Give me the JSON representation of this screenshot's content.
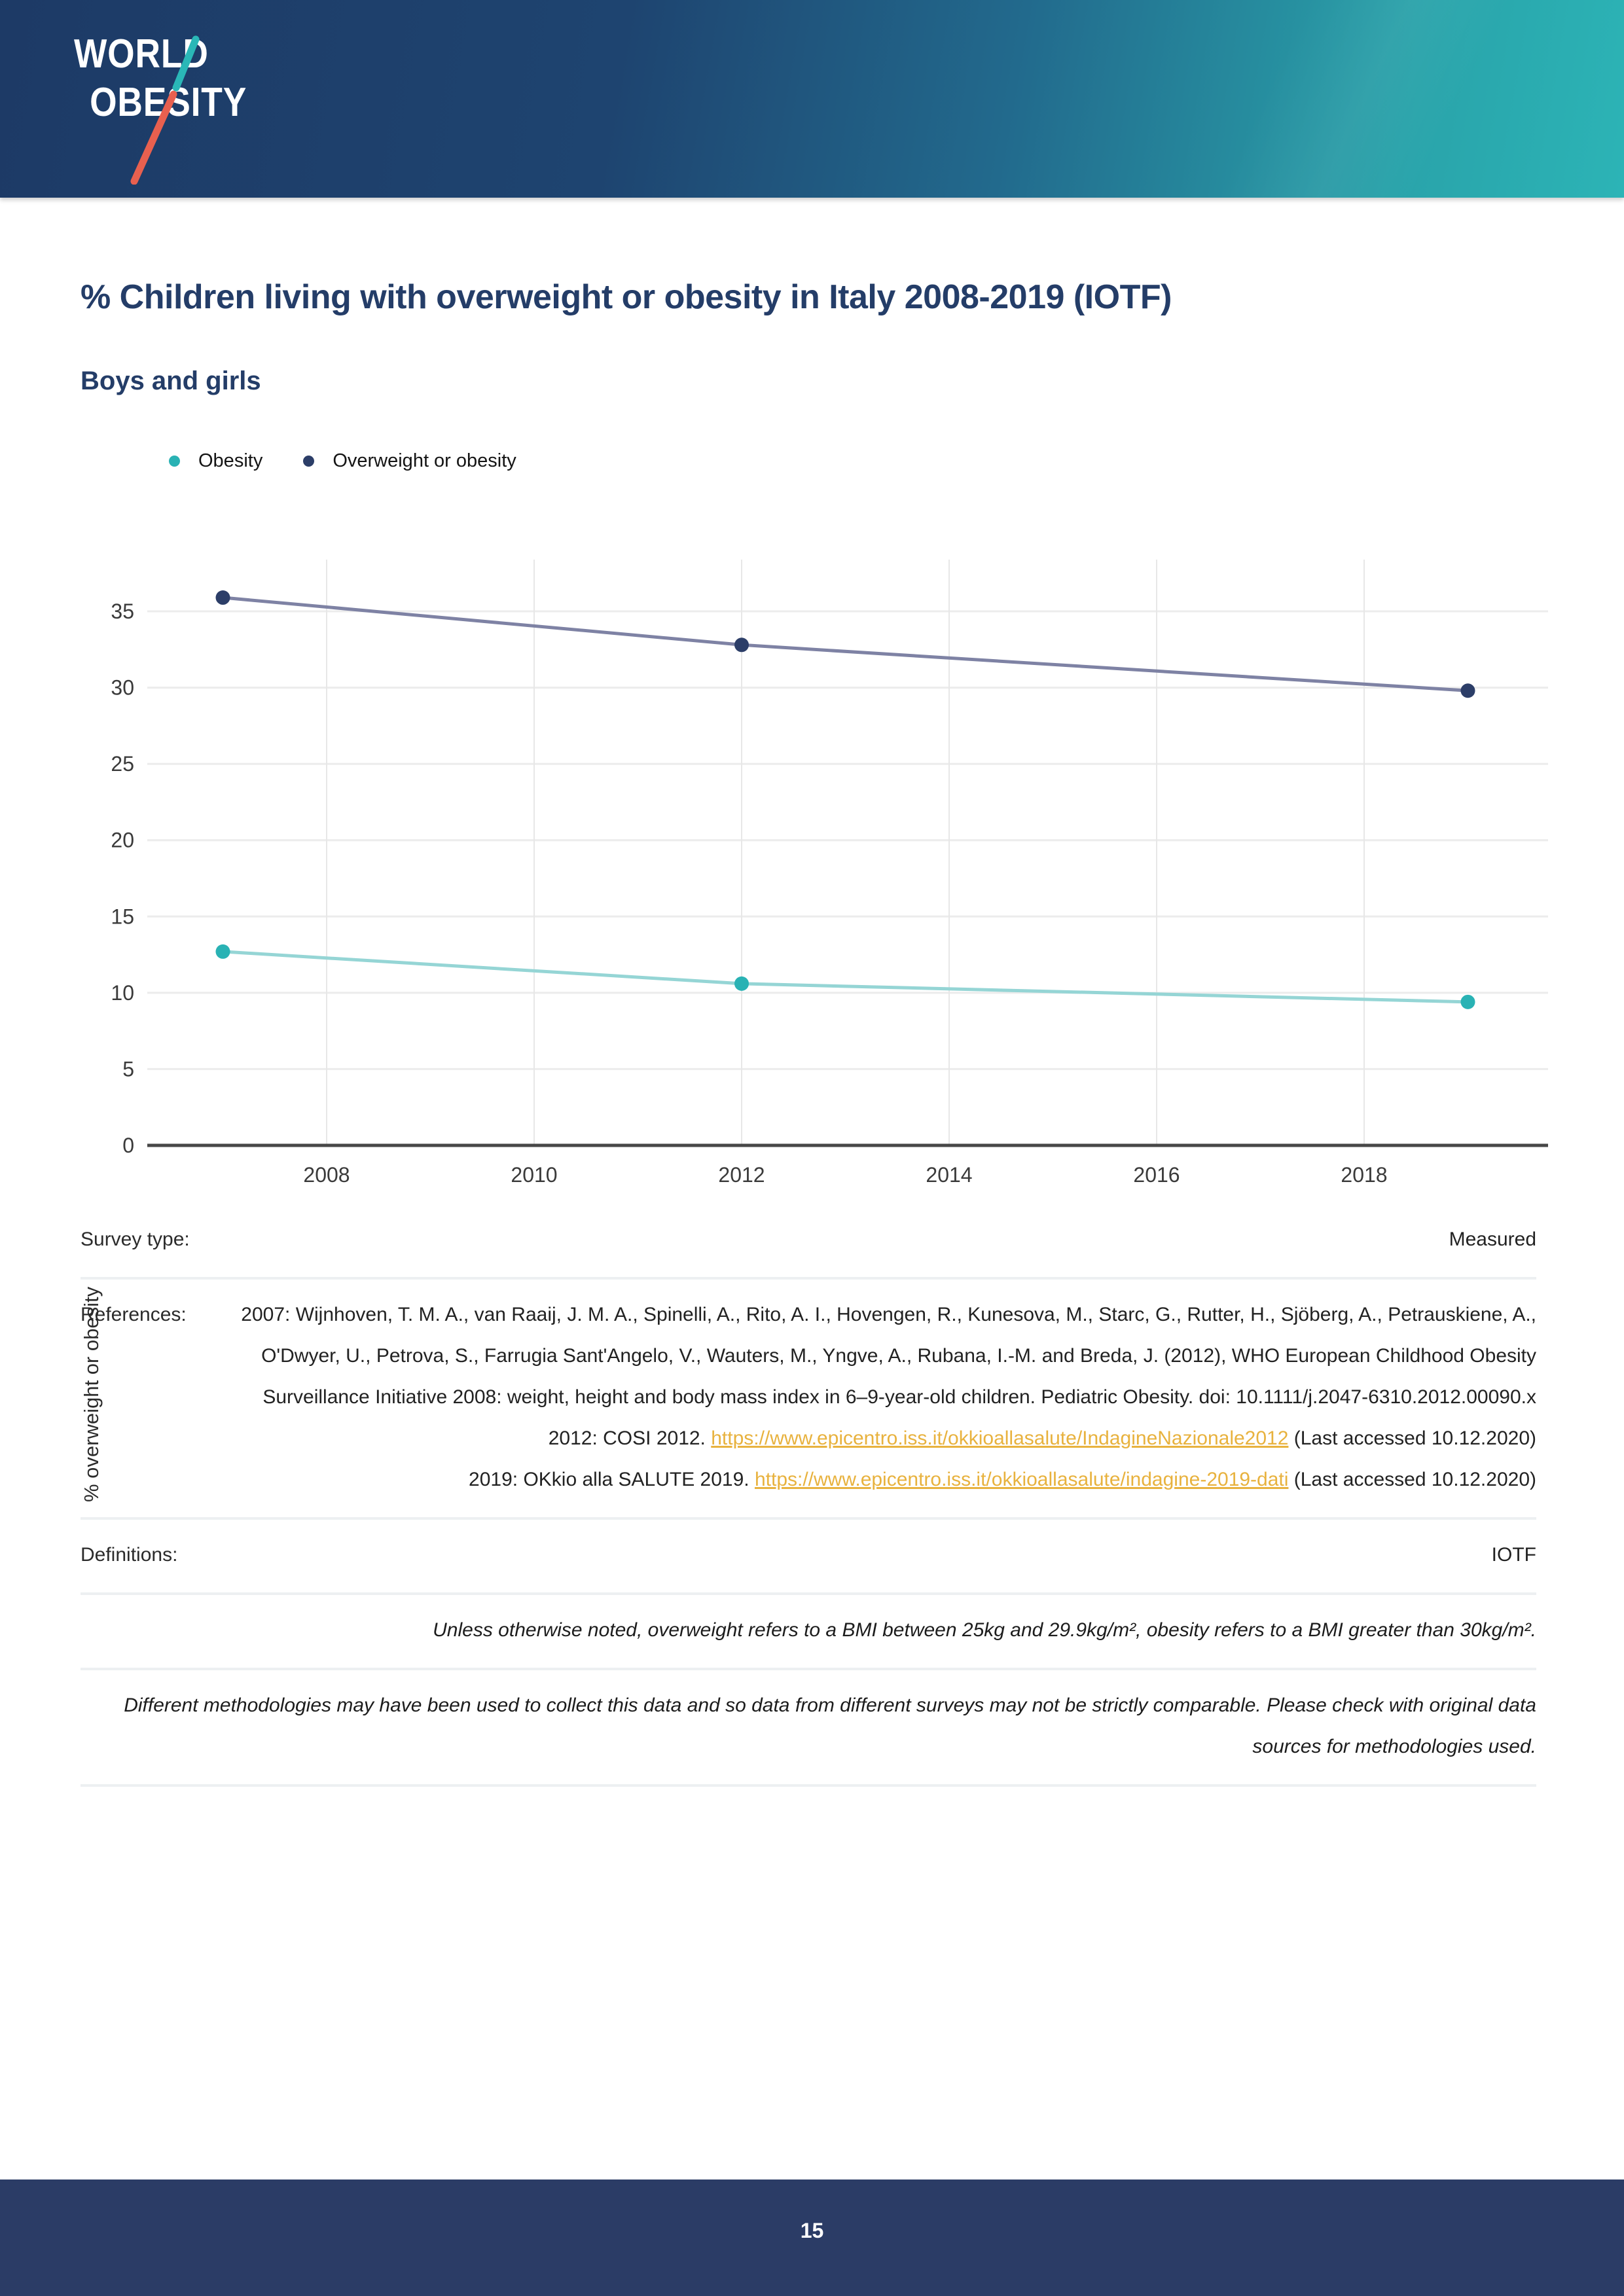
{
  "page": {
    "page_number": "15"
  },
  "header": {
    "logo_line1": "WORLD",
    "logo_line2": "OBESITY"
  },
  "title": "% Children living with overweight or obesity in Italy 2008-2019 (IOTF)",
  "subtitle": "Boys and girls",
  "colors": {
    "header_navy": "#1d3a66",
    "header_teal": "#2cb4b6",
    "heading_navy": "#243d68",
    "footer_navy": "#2b3c66",
    "link_orange": "#e8b23e",
    "obesity_dot": "#29b2b4",
    "obesity_line": "#95d5d5",
    "overweight_dot": "#2c3e68",
    "overweight_line": "#7e82a4",
    "gridline": "#ececec",
    "axis_line": "#474747"
  },
  "chart_data": {
    "type": "line",
    "title": "% Children living with overweight or obesity in Italy 2008-2019 (IOTF)",
    "subtitle": "Boys and girls",
    "x": [
      2007,
      2012,
      2019
    ],
    "series": [
      {
        "name": "Obesity",
        "color": "#29b2b4",
        "line_color": "#95d5d5",
        "values": [
          12.7,
          10.6,
          9.4
        ]
      },
      {
        "name": "Overweight or obesity",
        "color": "#2c3e68",
        "line_color": "#7e82a4",
        "values": [
          35.9,
          32.8,
          29.8
        ]
      }
    ],
    "xlabel": "",
    "ylabel": "% overweight or obesity",
    "ylim": [
      0,
      37.5
    ],
    "yticks": [
      0,
      5,
      10,
      15,
      20,
      25,
      30,
      35
    ],
    "xticks": [
      2008,
      2010,
      2012,
      2014,
      2016,
      2018
    ],
    "grid": true,
    "legend_position": "top-left"
  },
  "details": {
    "survey_type_label": "Survey type:",
    "survey_type_value": "Measured",
    "references_label": "References:",
    "references": [
      {
        "pre": "2007: Wijnhoven, T. M. A., van Raaij, J. M. A., Spinelli, A., Rito, A. I., Hovengen, R., Kunesova, M., Starc, G., Rutter, H., Sjöberg, A., Petrauskiene, A., O'Dwyer, U., Petrova, S., Farrugia Sant'Angelo, V., Wauters, M., Yngve, A., Rubana, I.-M. and Breda, J. (2012), WHO European Childhood Obesity Surveillance Initiative 2008: weight, height and body mass index in 6–9-year-old children. Pediatric Obesity. doi: 10.1111/j.2047-6310.2012.00090.x",
        "link": "",
        "post": ""
      },
      {
        "pre": "2012: COSI 2012. ",
        "link": "https://www.epicentro.iss.it/okkioallasalute/IndagineNazionale2012",
        "post": " (Last accessed 10.12.2020)"
      },
      {
        "pre": "2019: OKkio alla SALUTE 2019. ",
        "link": "https://www.epicentro.iss.it/okkioallasalute/indagine-2019-dati",
        "post": " (Last accessed 10.12.2020)"
      }
    ],
    "definitions_label": "Definitions:",
    "definitions_value": "IOTF",
    "definition_note": "Unless otherwise noted, overweight refers to a BMI between 25kg and 29.9kg/m², obesity refers to a BMI greater than 30kg/m².",
    "methodology_note": "Different methodologies may have been used to collect this data and so data from different surveys may not be strictly comparable. Please check with original data sources for methodologies used."
  }
}
